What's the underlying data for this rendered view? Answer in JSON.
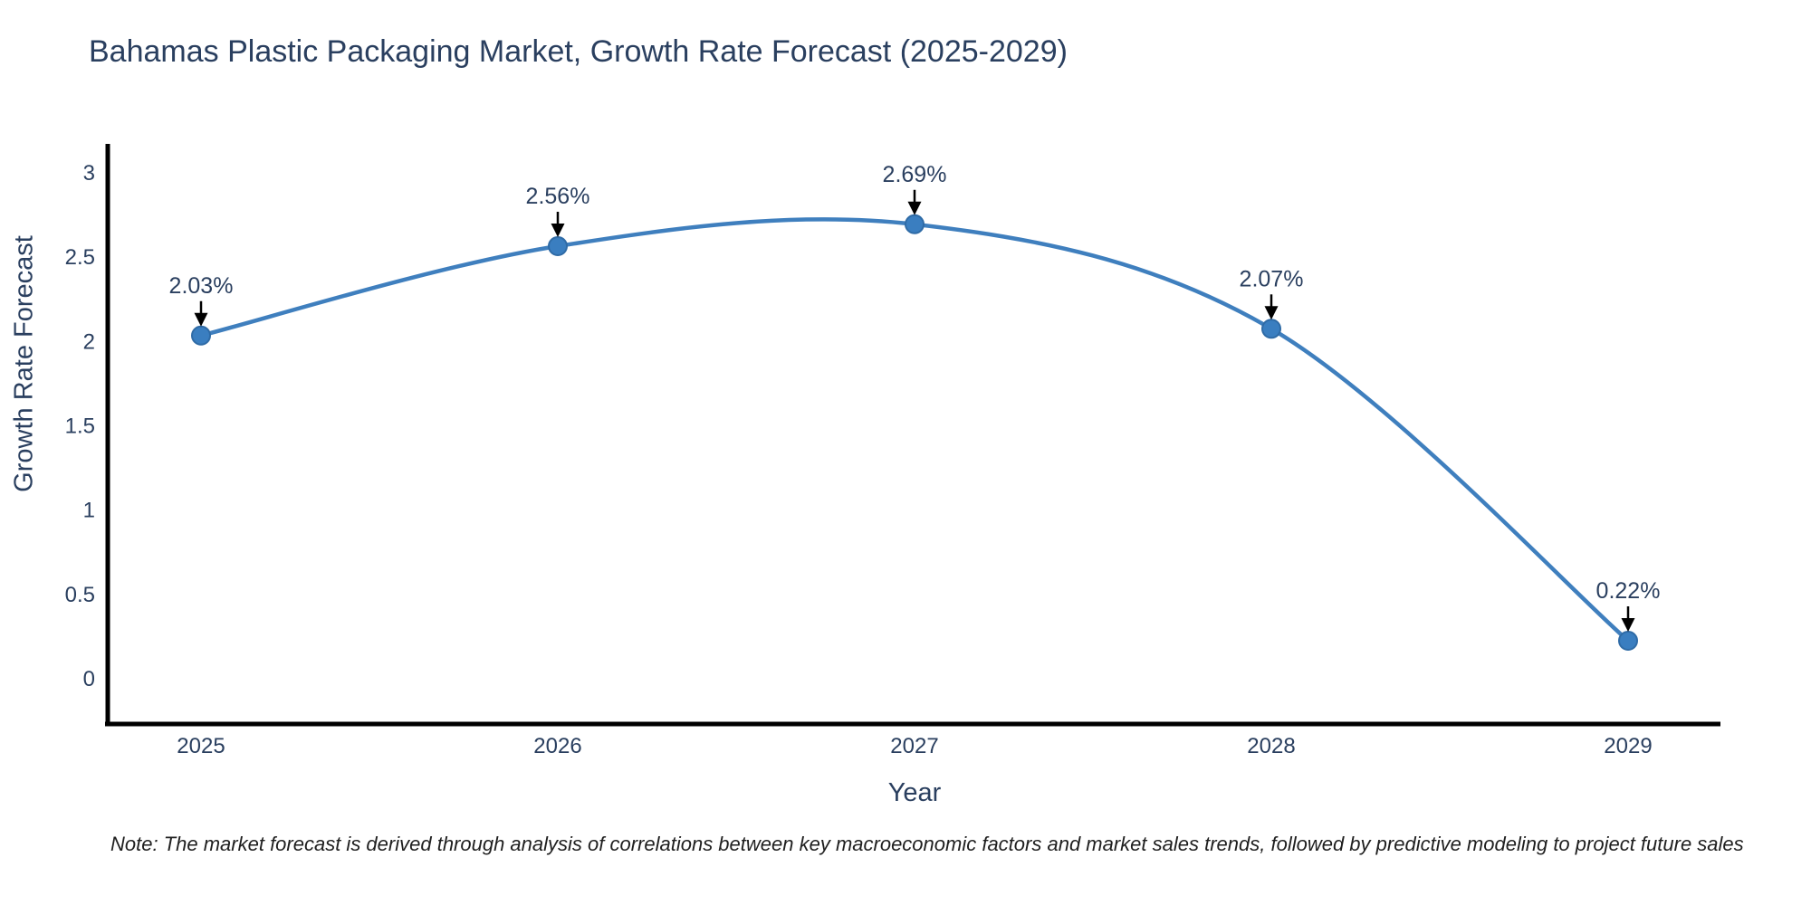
{
  "title": "Bahamas Plastic Packaging Market, Growth Rate Forecast (2025-2029)",
  "note": "Note: The market forecast is derived through analysis of correlations between key macroeconomic factors and market sales trends, followed by predictive modeling to project future sales",
  "chart_data": {
    "type": "line",
    "line_shape": "spline",
    "x": [
      "2025",
      "2026",
      "2027",
      "2028",
      "2029"
    ],
    "values": [
      2.03,
      2.56,
      2.69,
      2.07,
      0.22
    ],
    "point_labels": [
      "2.03%",
      "2.56%",
      "2.69%",
      "2.07%",
      "0.22%"
    ],
    "title": "Bahamas Plastic Packaging Market, Growth Rate Forecast (2025-2029)",
    "xlabel": "Year",
    "ylabel": "Growth Rate Forecast",
    "ylim": [
      0,
      3
    ],
    "yticks": [
      "0",
      "0.5",
      "1",
      "1.5",
      "2",
      "2.5",
      "3"
    ],
    "grid": false,
    "legend": "none",
    "markers": true,
    "annotation_arrows": true,
    "colors": {
      "line": "#3f7fbe",
      "marker_fill": "#3a7ec0",
      "marker_edge": "#2f6ba6",
      "axis_line": "#000000",
      "tick_text": "#2a3f5f",
      "annotation_text": "#2a3f5f",
      "arrow": "#000000",
      "note_text": "#1f1f1f",
      "background": "#ffffff"
    }
  }
}
